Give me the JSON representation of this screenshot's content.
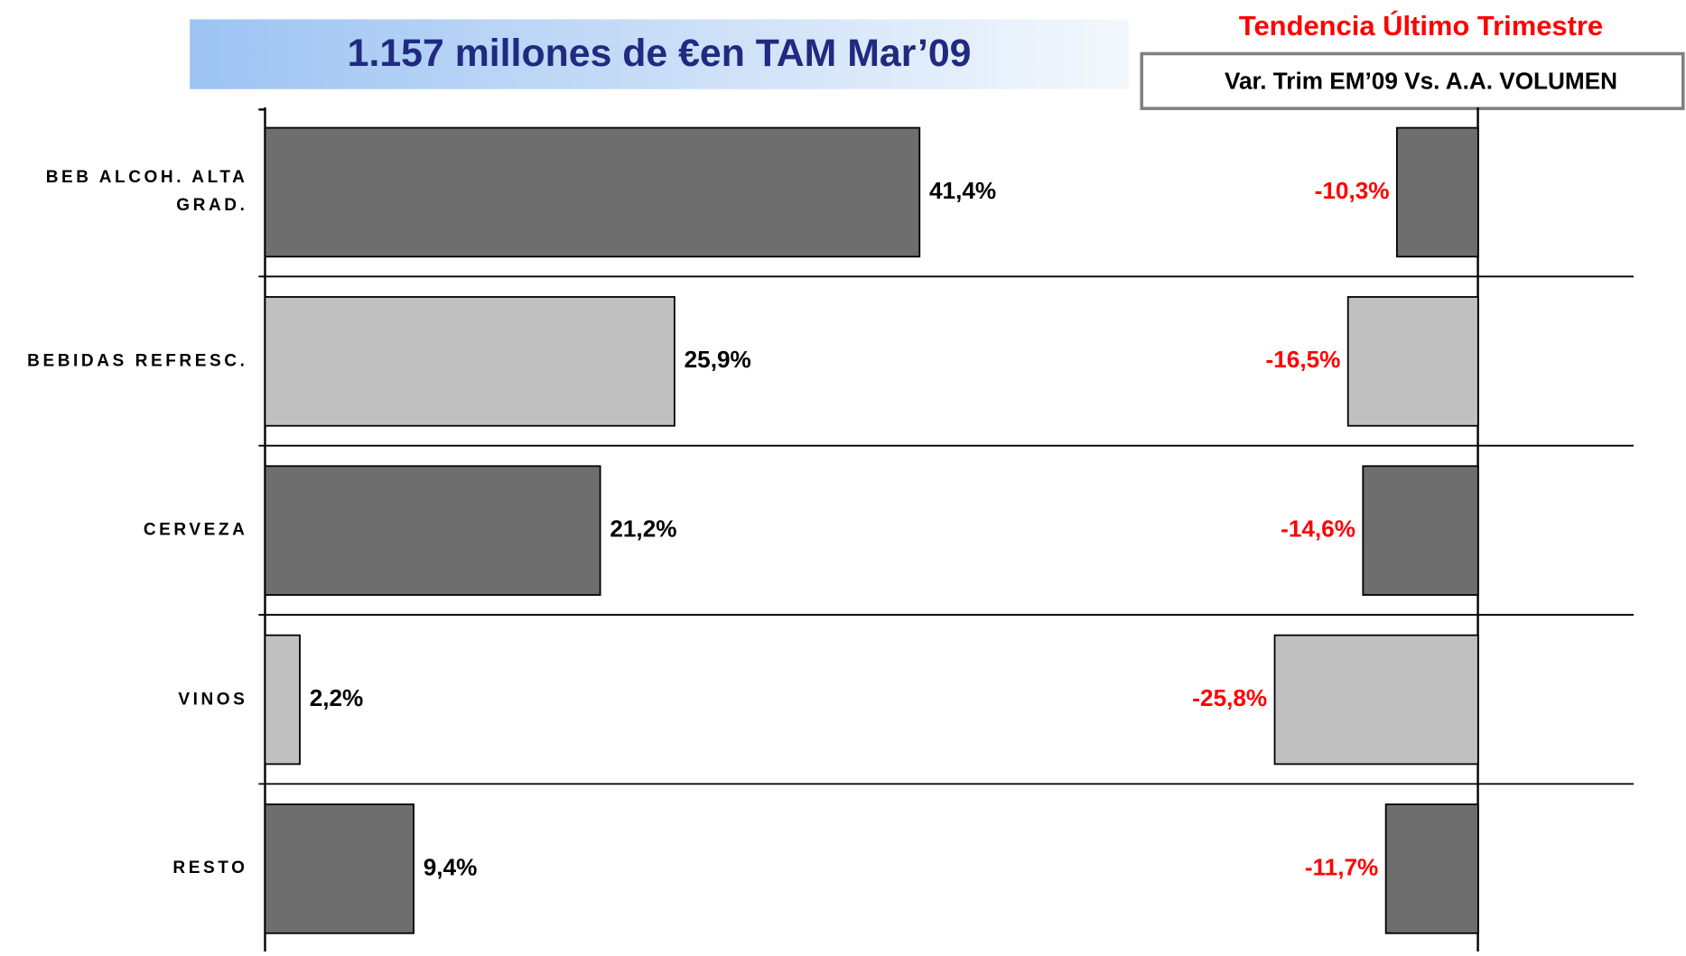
{
  "chart_data": [
    {
      "type": "bar",
      "orientation": "horizontal",
      "title": "1.157 millones de €en TAM Mar’09",
      "categories": [
        "BEB ALCOH. ALTA GRAD.",
        "BEBIDAS REFRESC.",
        "CERVEZA",
        "VINOS",
        "RESTO"
      ],
      "values": [
        41.4,
        25.9,
        21.2,
        2.2,
        9.4
      ],
      "value_labels": [
        "41,4%",
        "25,9%",
        "21,2%",
        "2,2%",
        "9,4%"
      ],
      "colors": [
        "#6e6e6e",
        "#c0c0c0",
        "#6e6e6e",
        "#c0c0c0",
        "#6e6e6e"
      ],
      "xlim": [
        0,
        60
      ]
    },
    {
      "type": "bar",
      "orientation": "horizontal",
      "title": "Tendencia Último Trimestre",
      "subtitle": "Var. Trim EM’09 Vs. A.A. VOLUMEN",
      "values": [
        -10.3,
        -16.5,
        -14.6,
        -25.8,
        -11.7
      ],
      "value_labels": [
        "-10,3%",
        "-16,5%",
        "-14,6%",
        "-25,8%",
        "-11,7%"
      ],
      "colors": [
        "#6e6e6e",
        "#c0c0c0",
        "#6e6e6e",
        "#c0c0c0",
        "#6e6e6e"
      ],
      "label_color": "#ff0000",
      "xlim": [
        -30,
        20
      ]
    }
  ]
}
